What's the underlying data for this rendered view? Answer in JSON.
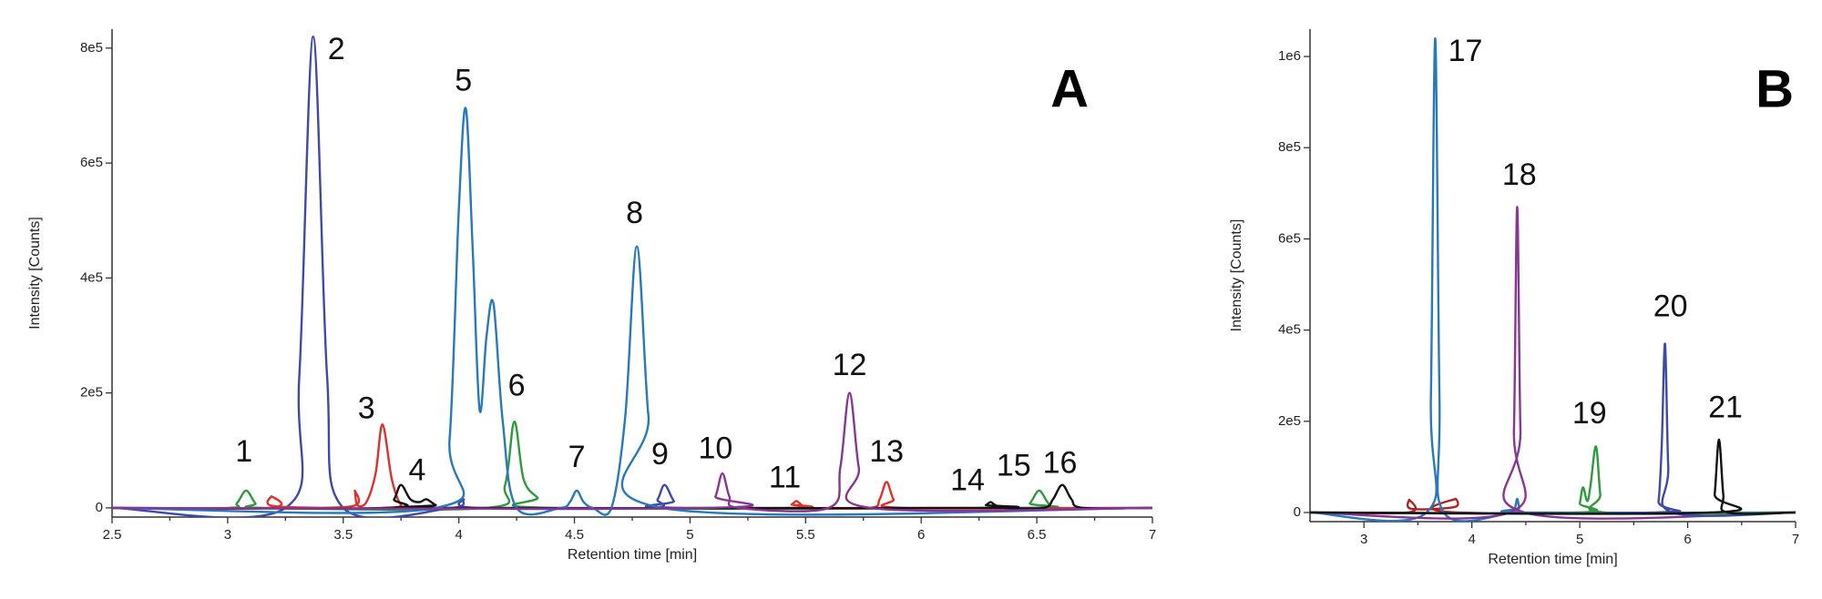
{
  "chart_data": [
    {
      "type": "line",
      "panel_label": "A",
      "x_label": "Retention time [min]",
      "y_label": "Intensity [Counts]",
      "xlim": [
        2.5,
        7
      ],
      "xticks": [
        2.5,
        3,
        3.5,
        4,
        4.5,
        5,
        5.5,
        6,
        6.5,
        7
      ],
      "ylim": [
        -16000,
        833000
      ],
      "yticks": [
        0,
        {
          "value": 200000,
          "label": "2e5"
        },
        {
          "value": 400000,
          "label": "4e5"
        },
        {
          "value": 600000,
          "label": "6e5"
        },
        {
          "value": 800000,
          "label": "8e5"
        }
      ],
      "series": [
        {
          "color": "#2e9a3c",
          "x": [
            2.5,
            3.0,
            3.04,
            3.08,
            3.12,
            3.16,
            4.12,
            4.2,
            4.24,
            4.28,
            4.34,
            4.4,
            6.43,
            6.47,
            6.51,
            6.55,
            6.59,
            7
          ],
          "values": [
            0,
            0,
            8000,
            30000,
            8000,
            0,
            0,
            40000,
            150000,
            50000,
            18000,
            0,
            0,
            8000,
            30000,
            8000,
            0,
            0
          ]
        },
        {
          "color": "#3f4aa8",
          "x": [
            2.5,
            3.25,
            3.31,
            3.37,
            3.43,
            3.5,
            3.97,
            4.02,
            4.07,
            4.82,
            4.86,
            4.89,
            4.93,
            4.97,
            7
          ],
          "values": [
            0,
            0,
            230000,
            820000,
            230000,
            0,
            0,
            15000,
            0,
            0,
            15000,
            40000,
            12000,
            0,
            0
          ]
        },
        {
          "color": "#e0302c",
          "x": [
            2.5,
            3.18,
            3.19,
            3.2,
            3.54,
            3.55,
            3.56,
            3.6,
            3.64,
            3.67,
            3.71,
            3.75,
            3.8,
            5.4,
            5.44,
            5.46,
            5.48,
            5.52,
            5.78,
            5.82,
            5.85,
            5.88,
            5.92,
            7
          ],
          "values": [
            0,
            0,
            20000,
            3000,
            3000,
            30000,
            5000,
            10000,
            60000,
            145000,
            50000,
            5000,
            0,
            0,
            6000,
            12000,
            6000,
            0,
            0,
            15000,
            45000,
            15000,
            0,
            0
          ]
        },
        {
          "color": "#111111",
          "x": [
            2.5,
            3.68,
            3.72,
            3.75,
            3.79,
            3.83,
            3.86,
            3.9,
            3.95,
            6.24,
            6.28,
            6.3,
            6.32,
            6.36,
            6.53,
            6.57,
            6.61,
            6.65,
            6.7,
            7
          ],
          "values": [
            0,
            0,
            15000,
            40000,
            15000,
            10000,
            15000,
            5000,
            0,
            0,
            5000,
            10000,
            5000,
            0,
            0,
            15000,
            40000,
            15000,
            0,
            0
          ]
        },
        {
          "color": "#2779bd",
          "x": [
            2.5,
            3.9,
            3.96,
            4.0,
            4.03,
            4.06,
            4.09,
            4.12,
            4.15,
            4.19,
            4.25,
            4.44,
            4.48,
            4.51,
            4.54,
            4.58,
            4.66,
            4.72,
            4.77,
            4.82,
            4.88,
            7
          ],
          "values": [
            0,
            0,
            120000,
            520000,
            695000,
            450000,
            170000,
            300000,
            355000,
            150000,
            0,
            0,
            10000,
            30000,
            10000,
            0,
            0,
            160000,
            455000,
            160000,
            0,
            0
          ]
        },
        {
          "color": "#8a3596",
          "x": [
            2.5,
            5.07,
            5.11,
            5.14,
            5.17,
            5.21,
            5.6,
            5.65,
            5.69,
            5.73,
            5.78,
            7
          ],
          "values": [
            0,
            0,
            20000,
            60000,
            20000,
            0,
            0,
            70000,
            200000,
            70000,
            0,
            0
          ]
        }
      ],
      "annotations": [
        {
          "text": "1",
          "x": 3.07,
          "y": 95000
        },
        {
          "text": "2",
          "x": 3.47,
          "y": 795000
        },
        {
          "text": "3",
          "x": 3.6,
          "y": 170000
        },
        {
          "text": "4",
          "x": 3.82,
          "y": 62000
        },
        {
          "text": "5",
          "x": 4.02,
          "y": 740000
        },
        {
          "text": "6",
          "x": 4.25,
          "y": 210000
        },
        {
          "text": "7",
          "x": 4.51,
          "y": 85000
        },
        {
          "text": "8",
          "x": 4.76,
          "y": 510000
        },
        {
          "text": "9",
          "x": 4.87,
          "y": 90000
        },
        {
          "text": "10",
          "x": 5.11,
          "y": 100000
        },
        {
          "text": "11",
          "x": 5.41,
          "y": 50000
        },
        {
          "text": "12",
          "x": 5.69,
          "y": 245000
        },
        {
          "text": "13",
          "x": 5.85,
          "y": 95000
        },
        {
          "text": "14",
          "x": 6.2,
          "y": 45000
        },
        {
          "text": "15",
          "x": 6.4,
          "y": 70000
        },
        {
          "text": "16",
          "x": 6.6,
          "y": 75000
        }
      ]
    },
    {
      "type": "line",
      "panel_label": "B",
      "x_label": "Retention time [min]",
      "y_label": "Intensity [Counts]",
      "xlim": [
        2.5,
        7
      ],
      "xticks": [
        3,
        4,
        5,
        6,
        7
      ],
      "ylim": [
        -20000,
        1060000
      ],
      "yticks": [
        0,
        {
          "value": 200000,
          "label": "2e5"
        },
        {
          "value": 400000,
          "label": "4e5"
        },
        {
          "value": 600000,
          "label": "6e5"
        },
        {
          "value": 800000,
          "label": "8e5"
        },
        {
          "value": 1000000,
          "label": "1e6"
        }
      ],
      "series": [
        {
          "color": "#b02222",
          "x": [
            2.5,
            3.41,
            3.42,
            3.44,
            3.84,
            3.85,
            3.87,
            7
          ],
          "values": [
            0,
            0,
            28000,
            8000,
            12000,
            30000,
            0,
            0
          ]
        },
        {
          "color": "#2779bd",
          "x": [
            2.5,
            3.58,
            3.62,
            3.66,
            3.7,
            3.74,
            4.37,
            4.4,
            4.42,
            4.44,
            4.47,
            7
          ],
          "values": [
            0,
            0,
            250000,
            1040000,
            250000,
            0,
            0,
            10000,
            30000,
            10000,
            0,
            0
          ]
        },
        {
          "color": "#8a3596",
          "x": [
            2.5,
            4.35,
            4.39,
            4.42,
            4.45,
            4.49,
            7
          ],
          "values": [
            0,
            0,
            180000,
            670000,
            180000,
            0,
            0
          ]
        },
        {
          "color": "#2e9a3c",
          "x": [
            2.5,
            4.97,
            5.0,
            5.03,
            5.07,
            5.1,
            5.15,
            5.19,
            5.23,
            7
          ],
          "values": [
            0,
            0,
            20000,
            55000,
            25000,
            60000,
            145000,
            40000,
            0,
            0
          ]
        },
        {
          "color": "#3f4aa8",
          "x": [
            2.5,
            5.68,
            5.73,
            5.76,
            5.79,
            5.82,
            5.86,
            7
          ],
          "values": [
            0,
            0,
            25000,
            150000,
            370000,
            100000,
            0,
            0
          ]
        },
        {
          "color": "#111111",
          "x": [
            2.5,
            6.21,
            6.25,
            6.29,
            6.33,
            6.37,
            7
          ],
          "values": [
            0,
            0,
            40000,
            160000,
            40000,
            0,
            0
          ]
        }
      ],
      "annotations": [
        {
          "text": "17",
          "x": 3.94,
          "y": 1008000
        },
        {
          "text": "18",
          "x": 4.44,
          "y": 737000
        },
        {
          "text": "19",
          "x": 5.09,
          "y": 214000
        },
        {
          "text": "20",
          "x": 5.84,
          "y": 448000
        },
        {
          "text": "21",
          "x": 6.35,
          "y": 227000
        }
      ]
    }
  ]
}
